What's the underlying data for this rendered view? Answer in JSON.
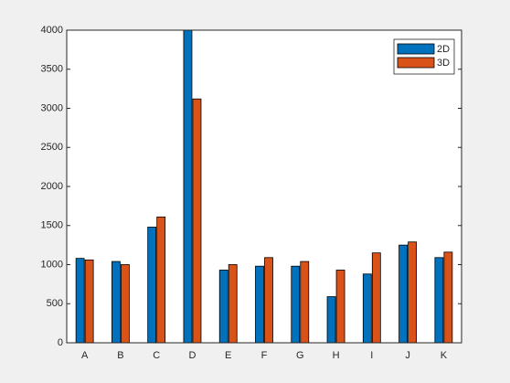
{
  "chart_data": {
    "type": "bar",
    "categories": [
      "A",
      "B",
      "C",
      "D",
      "E",
      "F",
      "G",
      "H",
      "I",
      "J",
      "K"
    ],
    "series": [
      {
        "name": "2D",
        "color": "#0072bd",
        "values": [
          1080,
          1040,
          1480,
          4000,
          930,
          980,
          980,
          590,
          880,
          1250,
          1090
        ]
      },
      {
        "name": "3D",
        "color": "#d95319",
        "values": [
          1060,
          1000,
          1610,
          3120,
          1000,
          1090,
          1040,
          930,
          1150,
          1290,
          1160
        ]
      }
    ],
    "ylim": [
      0,
      4000
    ],
    "yticks": [
      0,
      500,
      1000,
      1500,
      2000,
      2500,
      3000,
      3500,
      4000
    ],
    "grid": false,
    "legend": "top-right"
  }
}
